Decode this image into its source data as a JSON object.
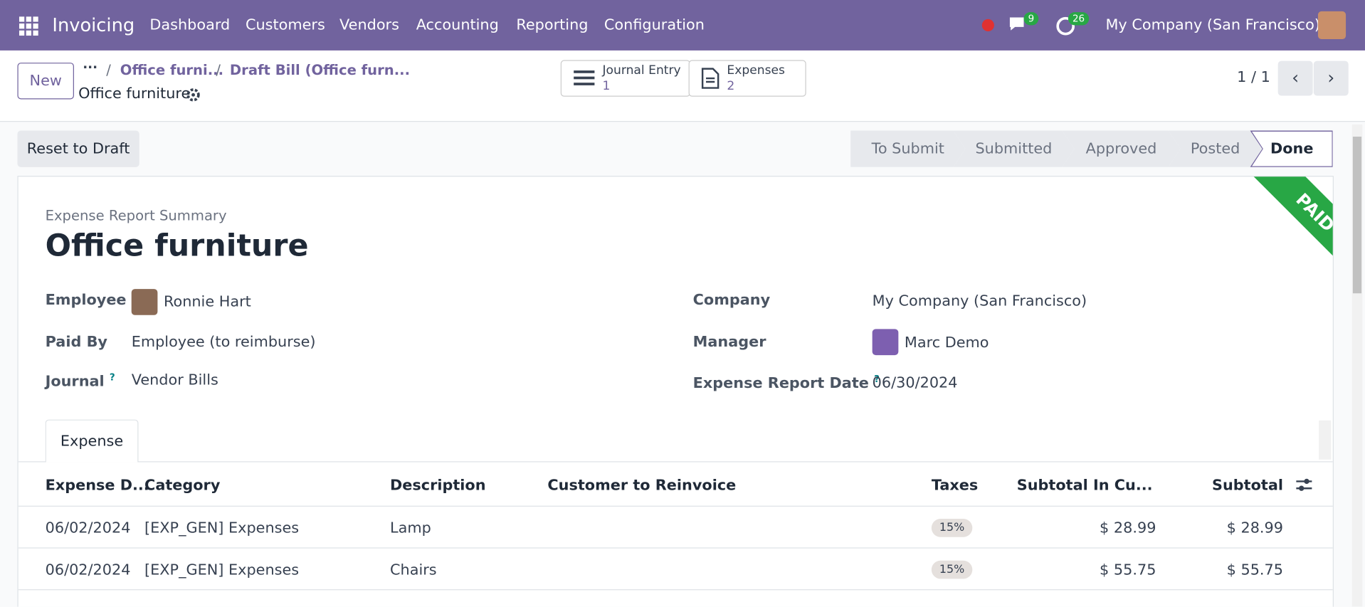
{
  "navbar": {
    "app": "Invoicing",
    "menu": [
      "Dashboard",
      "Customers",
      "Vendors",
      "Accounting",
      "Reporting",
      "Configuration"
    ],
    "messages_badge": "9",
    "activities_badge": "26",
    "company": "My Company (San Francisco)"
  },
  "control_panel": {
    "new_button": "New",
    "breadcrumbs": [
      "Office furni...",
      "Draft Bill (Office furn..."
    ],
    "record_name": "Office furniture",
    "smart_buttons": [
      {
        "label": "Journal Entry",
        "count": "1"
      },
      {
        "label": "Expenses",
        "count": "2"
      }
    ],
    "pager": "1 / 1"
  },
  "actions": {
    "reset_button": "Reset to Draft",
    "statuses": [
      "To Submit",
      "Submitted",
      "Approved",
      "Posted",
      "Done"
    ],
    "ribbon": "PAID"
  },
  "form": {
    "subtitle": "Expense Report Summary",
    "title": "Office furniture",
    "fields_left": [
      {
        "label": "Employee",
        "value": "Ronnie Hart"
      },
      {
        "label": "Paid By",
        "value": "Employee (to reimburse)"
      },
      {
        "label": "Journal",
        "tooltip": "?",
        "value": "Vendor Bills"
      }
    ],
    "fields_right": [
      {
        "label": "Company",
        "value": "My Company (San Francisco)"
      },
      {
        "label": "Manager",
        "value": "Marc Demo"
      },
      {
        "label": "Expense Report Date",
        "tooltip": "?",
        "value": "06/30/2024"
      }
    ],
    "tab": "Expense"
  },
  "table": {
    "columns": [
      "Expense D...",
      "Category",
      "Description",
      "Customer to Reinvoice",
      "Taxes",
      "Subtotal In Cu...",
      "Subtotal"
    ],
    "rows": [
      {
        "date": "06/02/2024",
        "category": "[EXP_GEN] Expenses",
        "description": "Lamp",
        "taxes": "15%",
        "subtotal_currency": "$ 28.99",
        "subtotal": "$ 28.99"
      },
      {
        "date": "06/02/2024",
        "category": "[EXP_GEN] Expenses",
        "description": "Chairs",
        "taxes": "15%",
        "subtotal_currency": "$ 55.75",
        "subtotal": "$ 55.75"
      }
    ]
  }
}
